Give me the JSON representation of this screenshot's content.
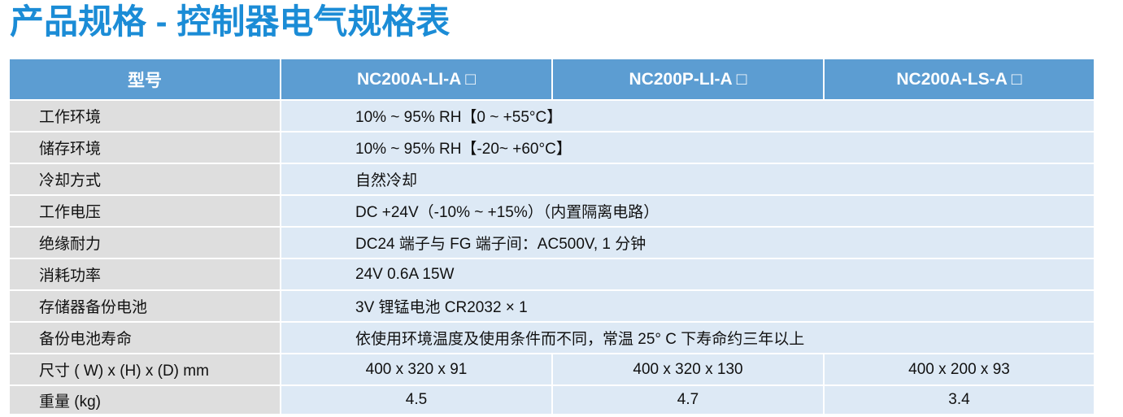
{
  "title": "产品规格 - 控制器电气规格表",
  "table": {
    "header": [
      "型号",
      "NC200A-LI-A □",
      "NC200P-LI-A □",
      "NC200A-LS-A □"
    ],
    "rows": [
      [
        "工作环境",
        "10% ~ 95% RH【0 ~ +55°C】"
      ],
      [
        "储存环境",
        "10% ~ 95% RH【-20~ +60°C】"
      ],
      [
        "冷却方式",
        "自然冷却"
      ],
      [
        "工作电压",
        "DC +24V（-10% ~ +15%）（内置隔离电路）"
      ],
      [
        "绝缘耐力",
        "DC24 端子与 FG 端子间：AC500V, 1 分钟"
      ],
      [
        "消耗功率",
        "24V 0.6A 15W"
      ],
      [
        "存储器备份电池",
        "3V 锂锰电池 CR2032 × 1"
      ],
      [
        "备份电池寿命",
        "依使用环境温度及使用条件而不同，常温 25° C 下寿命约三年以上"
      ],
      [
        "尺寸 ( W) x (H) x (D) mm",
        "400 x 320 x 91",
        "400 x 320 x 130",
        "400 x 200 x 93"
      ],
      [
        "重量 (kg)",
        "4.5",
        "4.7",
        "3.4"
      ]
    ]
  }
}
